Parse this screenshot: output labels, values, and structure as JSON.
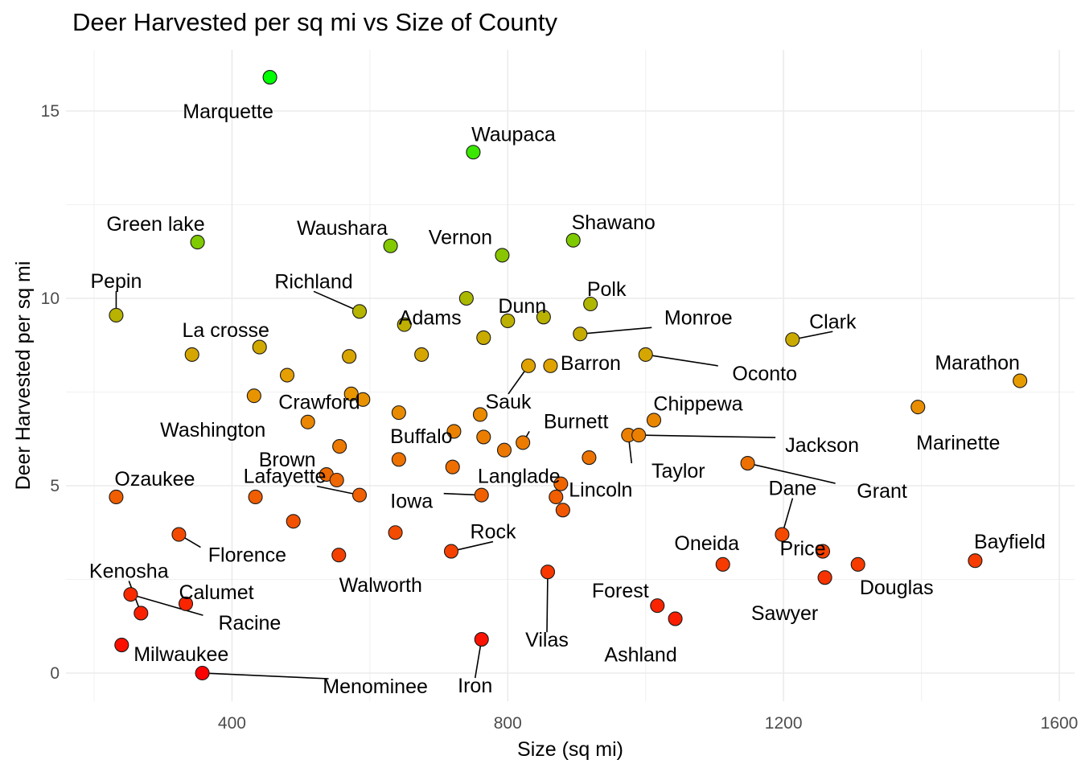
{
  "chart_data": {
    "type": "scatter",
    "title": "Deer Harvested per sq mi vs Size of County",
    "xlabel": "Size (sq mi)",
    "ylabel": "Deer Harvested per sq mi",
    "xlim": [
      160,
      1620
    ],
    "ylim": [
      -0.75,
      16.4
    ],
    "xticks": [
      400,
      800,
      1200,
      1600
    ],
    "yticks": [
      0,
      5,
      10,
      15
    ],
    "grid": true,
    "legend": "none",
    "color_scale": {
      "low": "#ff0000",
      "mid": "#e69f00",
      "high": "#00ff00"
    },
    "points": [
      {
        "x": 455,
        "y": 15.9,
        "label": "Marquette"
      },
      {
        "x": 750,
        "y": 13.9,
        "label": "Waupaca"
      },
      {
        "x": 350,
        "y": 11.5,
        "label": "Green lake"
      },
      {
        "x": 630,
        "y": 11.4,
        "label": "Waushara"
      },
      {
        "x": 895,
        "y": 11.55,
        "label": "Shawano"
      },
      {
        "x": 792,
        "y": 11.15,
        "label": "Vernon"
      },
      {
        "x": 232,
        "y": 9.55,
        "label": "Pepin"
      },
      {
        "x": 585,
        "y": 9.65,
        "label": "Richland"
      },
      {
        "x": 740,
        "y": 10.0,
        "label": ""
      },
      {
        "x": 920,
        "y": 9.85,
        "label": "Polk"
      },
      {
        "x": 650,
        "y": 9.3,
        "label": "Adams"
      },
      {
        "x": 800,
        "y": 9.4,
        "label": "Dunn"
      },
      {
        "x": 852,
        "y": 9.5,
        "label": ""
      },
      {
        "x": 905,
        "y": 9.05,
        "label": "Monroe"
      },
      {
        "x": 1213,
        "y": 8.9,
        "label": "Clark"
      },
      {
        "x": 765,
        "y": 8.95,
        "label": ""
      },
      {
        "x": 342,
        "y": 8.5,
        "label": "La crosse"
      },
      {
        "x": 440,
        "y": 8.7,
        "label": ""
      },
      {
        "x": 570,
        "y": 8.45,
        "label": ""
      },
      {
        "x": 675,
        "y": 8.5,
        "label": ""
      },
      {
        "x": 1000,
        "y": 8.5,
        "label": "Oconto"
      },
      {
        "x": 1543,
        "y": 7.8,
        "label": "Marathon"
      },
      {
        "x": 830,
        "y": 8.2,
        "label": "Sauk"
      },
      {
        "x": 862,
        "y": 8.2,
        "label": "Barron"
      },
      {
        "x": 480,
        "y": 7.95,
        "label": "Crawford"
      },
      {
        "x": 432,
        "y": 7.4,
        "label": ""
      },
      {
        "x": 573,
        "y": 7.45,
        "label": ""
      },
      {
        "x": 590,
        "y": 7.3,
        "label": ""
      },
      {
        "x": 1395,
        "y": 7.1,
        "label": "Marinette"
      },
      {
        "x": 642,
        "y": 6.95,
        "label": "Buffalo"
      },
      {
        "x": 760,
        "y": 6.9,
        "label": ""
      },
      {
        "x": 510,
        "y": 6.7,
        "label": "Washington"
      },
      {
        "x": 1012,
        "y": 6.75,
        "label": "Chippewa"
      },
      {
        "x": 722,
        "y": 6.45,
        "label": ""
      },
      {
        "x": 765,
        "y": 6.3,
        "label": ""
      },
      {
        "x": 822,
        "y": 6.15,
        "label": "Burnett"
      },
      {
        "x": 975,
        "y": 6.35,
        "label": "Taylor"
      },
      {
        "x": 990,
        "y": 6.35,
        "label": "Jackson"
      },
      {
        "x": 556,
        "y": 6.05,
        "label": "Brown"
      },
      {
        "x": 795,
        "y": 5.95,
        "label": ""
      },
      {
        "x": 642,
        "y": 5.7,
        "label": ""
      },
      {
        "x": 918,
        "y": 5.75,
        "label": ""
      },
      {
        "x": 720,
        "y": 5.5,
        "label": ""
      },
      {
        "x": 1148,
        "y": 5.6,
        "label": "Grant"
      },
      {
        "x": 537,
        "y": 5.3,
        "label": ""
      },
      {
        "x": 552,
        "y": 5.15,
        "label": ""
      },
      {
        "x": 232,
        "y": 4.7,
        "label": "Ozaukee"
      },
      {
        "x": 434,
        "y": 4.7,
        "label": ""
      },
      {
        "x": 585,
        "y": 4.75,
        "label": "Lafayette"
      },
      {
        "x": 762,
        "y": 4.75,
        "label": "Iowa"
      },
      {
        "x": 877,
        "y": 5.05,
        "label": "Langlade"
      },
      {
        "x": 870,
        "y": 4.7,
        "label": ""
      },
      {
        "x": 880,
        "y": 4.35,
        "label": "Lincoln"
      },
      {
        "x": 489,
        "y": 4.05,
        "label": ""
      },
      {
        "x": 637,
        "y": 3.75,
        "label": ""
      },
      {
        "x": 1198,
        "y": 3.7,
        "label": "Dane"
      },
      {
        "x": 323,
        "y": 3.7,
        "label": "Florence"
      },
      {
        "x": 718,
        "y": 3.25,
        "label": "Rock"
      },
      {
        "x": 1257,
        "y": 3.25,
        "label": "Price"
      },
      {
        "x": 555,
        "y": 3.15,
        "label": "Walworth"
      },
      {
        "x": 1112,
        "y": 2.9,
        "label": "Oneida"
      },
      {
        "x": 1308,
        "y": 2.9,
        "label": "Douglas"
      },
      {
        "x": 1478,
        "y": 3.0,
        "label": "Bayfield"
      },
      {
        "x": 1260,
        "y": 2.55,
        "label": "Sawyer"
      },
      {
        "x": 858,
        "y": 2.7,
        "label": "Vilas"
      },
      {
        "x": 268,
        "y": 1.6,
        "label": "Kenosha"
      },
      {
        "x": 333,
        "y": 1.85,
        "label": "Calumet"
      },
      {
        "x": 1017,
        "y": 1.8,
        "label": "Forest"
      },
      {
        "x": 1043,
        "y": 1.45,
        "label": "Ashland"
      },
      {
        "x": 240,
        "y": 0.75,
        "label": "Milwaukee"
      },
      {
        "x": 762,
        "y": 0.9,
        "label": "Iron"
      },
      {
        "x": 357,
        "y": 0.0,
        "label": "Menominee"
      },
      {
        "x": 253,
        "y": 2.1,
        "label": "Racine"
      }
    ]
  }
}
